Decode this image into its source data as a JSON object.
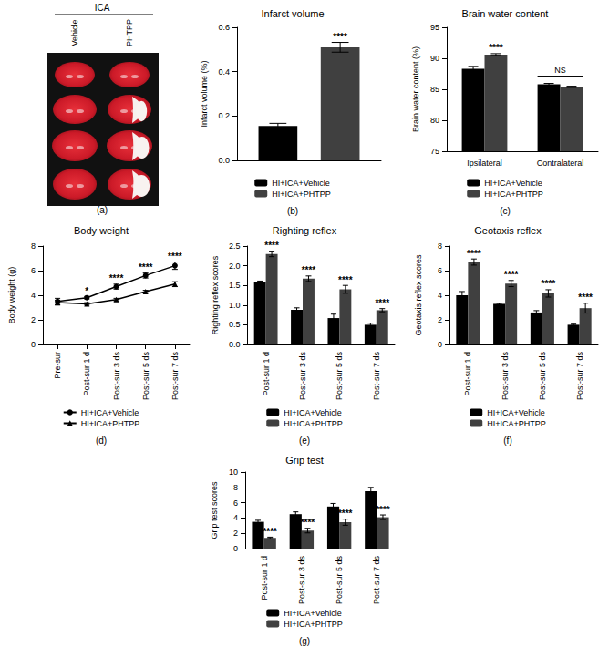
{
  "panel_a": {
    "header": "ICA",
    "columns": [
      "Vehicle",
      "PHTPP"
    ],
    "panel_label": "(a)"
  },
  "chart_data": [
    {
      "type": "bar",
      "title": "Infarct volume",
      "panel_label": "(b)",
      "categories": [
        null
      ],
      "y_label": "Infarct volume (%)",
      "ylim": [
        0,
        0.6
      ],
      "yticks": [
        {
          "value": 0,
          "label": "0.0"
        },
        0.2,
        0.4,
        0.6
      ],
      "tick_labels": "y",
      "grid": false,
      "legend": "bottom",
      "series": [
        {
          "name": "HI+ICA+Vehicle",
          "color": "#000000",
          "values": [
            0.155
          ],
          "errors": [
            0.012
          ]
        },
        {
          "name": "HI+ICA+PHTPP",
          "color": "#404040",
          "values": [
            0.51
          ],
          "errors": [
            0.022
          ],
          "significance": [
            "****"
          ]
        }
      ]
    },
    {
      "type": "bar",
      "title": "Brain water content",
      "panel_label": "(c)",
      "categories": [
        "Ipsilateral",
        "Contralateral"
      ],
      "y_label": "Brain water content (%)",
      "ylim": [
        75,
        95
      ],
      "yticks": [
        75,
        80,
        85,
        90,
        95
      ],
      "grid": false,
      "legend": "bottom",
      "series": [
        {
          "name": "HI+ICA+Vehicle",
          "color": "#000000",
          "values": [
            88.3,
            85.8
          ],
          "errors": [
            0.4,
            0.15
          ]
        },
        {
          "name": "HI+ICA+PHTPP",
          "color": "#404040",
          "values": [
            90.6,
            85.4
          ],
          "errors": [
            0.15,
            0.1
          ],
          "significance": [
            "****",
            "NS"
          ]
        }
      ]
    },
    {
      "type": "line",
      "title": "Body weight",
      "panel_label": "(d)",
      "categories": [
        "Pre-sur",
        "Post-sur 1 d",
        "Post-sur 3 ds",
        "Post-sur 5 ds",
        "Post-sur 7 ds"
      ],
      "y_label": "Body weight (g)",
      "ylim": [
        0,
        8
      ],
      "yticks": [
        0,
        2,
        4,
        6,
        8
      ],
      "grid": false,
      "legend": "bottom",
      "series": [
        {
          "name": "HI+ICA+Vehicle",
          "color": "#000000",
          "marker": "circle",
          "line_style": "solid",
          "values": [
            3.5,
            3.8,
            4.7,
            5.6,
            6.4
          ],
          "errors": [
            0.25,
            0.1,
            0.2,
            0.2,
            0.3
          ],
          "significance": [
            null,
            "*",
            "****",
            "****",
            "****"
          ]
        },
        {
          "name": "HI+ICA+PHTPP",
          "color": "#000000",
          "marker": "triangle",
          "line_style": "solid",
          "values": [
            3.4,
            3.3,
            3.65,
            4.3,
            4.9
          ],
          "errors": [
            0.2,
            0.1,
            0.1,
            0.1,
            0.2
          ]
        }
      ]
    },
    {
      "type": "bar",
      "title": "Righting reflex",
      "panel_label": "(e)",
      "categories": [
        "Post-sur 1 d",
        "Post-sur 3 ds",
        "Post-sur 5 ds",
        "Post-sur 7 ds"
      ],
      "y_label": "Righting reflex scores",
      "ylim": [
        0,
        2.5
      ],
      "yticks": [
        {
          "value": 0,
          "label": "0.0"
        },
        0.5,
        {
          "value": 1,
          "label": "1.0"
        },
        1.5,
        {
          "value": 2,
          "label": "2.0"
        },
        2.5
      ],
      "grid": false,
      "legend": "bottom",
      "series": [
        {
          "name": "HI+ICA+Vehicle",
          "color": "#000000",
          "values": [
            1.6,
            0.88,
            0.67,
            0.5
          ],
          "errors": [
            0.01,
            0.05,
            0.1,
            0.04
          ]
        },
        {
          "name": "HI+ICA+PHTPP",
          "color": "#404040",
          "values": [
            2.3,
            1.67,
            1.4,
            0.87
          ],
          "errors": [
            0.07,
            0.07,
            0.1,
            0.04
          ],
          "significance": [
            "****",
            "****",
            "****",
            "****"
          ]
        }
      ]
    },
    {
      "type": "bar",
      "title": "Geotaxis reflex",
      "panel_label": "(f)",
      "categories": [
        "Post-sur 1 d",
        "Post-sur 3 ds",
        "Post-sur 5 ds",
        "Post-sur 7 ds"
      ],
      "y_label": "Geotaxis reflex scores",
      "ylim": [
        0,
        8
      ],
      "yticks": [
        0,
        2,
        4,
        6,
        8
      ],
      "grid": false,
      "legend": "bottom",
      "series": [
        {
          "name": "HI+ICA+Vehicle",
          "color": "#000000",
          "values": [
            4.0,
            3.3,
            2.6,
            1.6
          ],
          "errors": [
            0.3,
            0.05,
            0.15,
            0.05
          ]
        },
        {
          "name": "HI+ICA+PHTPP",
          "color": "#404040",
          "values": [
            6.7,
            4.95,
            4.15,
            2.95
          ],
          "errors": [
            0.25,
            0.25,
            0.3,
            0.4
          ],
          "significance": [
            "****",
            "****",
            "****",
            "****"
          ]
        }
      ]
    },
    {
      "type": "bar",
      "title": "Grip test",
      "panel_label": "(g)",
      "categories": [
        "Post-sur 1 d",
        "Post-sur 3 ds",
        "Post-sur 5 ds",
        "Post-sur 7 ds"
      ],
      "y_label": "Grip test scores",
      "ylim": [
        0,
        10
      ],
      "yticks": [
        0,
        2,
        4,
        6,
        8,
        10
      ],
      "grid": false,
      "legend": "bottom",
      "series": [
        {
          "name": "HI+ICA+Vehicle",
          "color": "#000000",
          "values": [
            3.5,
            4.5,
            5.5,
            7.5
          ],
          "errors": [
            0.2,
            0.3,
            0.4,
            0.5
          ]
        },
        {
          "name": "HI+ICA+PHTPP",
          "color": "#404040",
          "values": [
            1.4,
            2.35,
            3.45,
            4.1
          ],
          "errors": [
            0.1,
            0.3,
            0.4,
            0.3
          ],
          "significance": [
            "****",
            "****",
            "****",
            "****"
          ]
        }
      ]
    }
  ]
}
